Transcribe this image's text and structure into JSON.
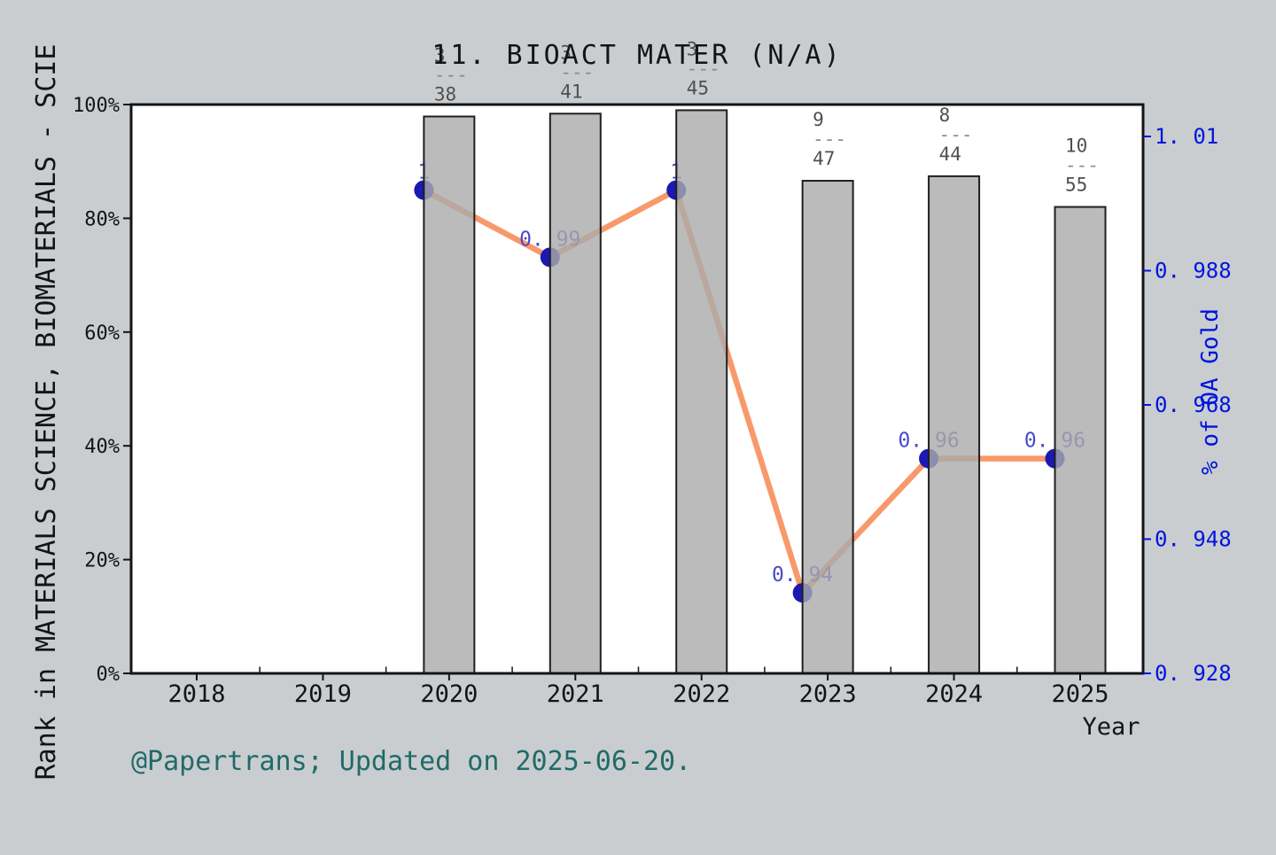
{
  "title": "11. BIOACT MATER (N/A)",
  "footer": "@Papertrans; Updated on 2025-06-20.",
  "axes": {
    "x": {
      "label": "Year",
      "tick_years": [
        2018,
        2019,
        2020,
        2021,
        2022,
        2023,
        2024,
        2025
      ],
      "tick_labels": [
        "2018",
        "2019",
        "2020",
        "2021",
        "2022",
        "2023",
        "2024",
        "2025"
      ]
    },
    "left": {
      "label": "Rank in MATERIALS SCIENCE, BIOMATERIALS - SCIE",
      "tick_values": [
        0,
        20,
        40,
        60,
        80,
        100
      ],
      "tick_labels": [
        "0%",
        "20%",
        "40%",
        "60%",
        "80%",
        "100%"
      ]
    },
    "right": {
      "label": "% of OA Gold",
      "tick_values": [
        0.928,
        0.948,
        0.968,
        0.988,
        1.008
      ],
      "tick_labels": [
        "0. 928",
        "0. 948",
        "0. 968",
        "0. 988",
        "1. 01"
      ]
    }
  },
  "fraction_separator": "---",
  "colors": {
    "background": "#c9cdd0",
    "plot_background": "#ffffff",
    "bar_fill": "#aaaaaa",
    "bar_edge": "#1f1f1f",
    "line": "#f8996b",
    "marker": "#1a1ab2",
    "point_label": "#4a4ac8",
    "right_axis": "#0014dc",
    "left_axis_text": "#141414",
    "fraction_text": "#4f4f4f",
    "fraction_dash": "#8c8c8c",
    "footer_text": "#206a69"
  },
  "chart_data": [
    {
      "type": "bar",
      "title": "11. BIOACT MATER (N/A)",
      "categories": [
        2020,
        2021,
        2022,
        2023,
        2024,
        2025
      ],
      "values_percent": [
        97.9,
        98.4,
        99.0,
        86.6,
        87.4,
        82.0
      ],
      "bar_labels": [
        "3/38",
        "3/41",
        "3/45",
        "9/47",
        "8/44",
        "10/55"
      ],
      "fractions": [
        {
          "num": "3",
          "den": "38"
        },
        {
          "num": "3",
          "den": "41"
        },
        {
          "num": "3",
          "den": "45"
        },
        {
          "num": "9",
          "den": "47"
        },
        {
          "num": "8",
          "den": "44"
        },
        {
          "num": "10",
          "den": "55"
        }
      ],
      "axis": "left",
      "ylabel": "Rank in MATERIALS SCIENCE, BIOMATERIALS - SCIE",
      "ylim_percent": [
        0,
        100
      ],
      "yticks": [
        "0%",
        "20%",
        "40%",
        "60%",
        "80%",
        "100%"
      ],
      "xlabel": "Year",
      "xticks": [
        "2018",
        "2019",
        "2020",
        "2021",
        "2022",
        "2023",
        "2024",
        "2025"
      ],
      "grid": false,
      "legend": false
    },
    {
      "type": "line",
      "x": [
        2020,
        2021,
        2022,
        2023,
        2024,
        2025
      ],
      "values": [
        1.0,
        0.99,
        1.0,
        0.94,
        0.96,
        0.96
      ],
      "point_labels": [
        "1",
        "0. 99",
        "1",
        "0. 94",
        "0. 96",
        "0. 96"
      ],
      "axis": "right",
      "ylabel": "% of OA Gold",
      "ylim": [
        0.928,
        1.01
      ],
      "ytick_values": [
        0.928,
        0.948,
        0.968,
        0.988,
        1.008
      ],
      "ytick_labels": [
        "0. 928",
        "0. 948",
        "0. 968",
        "0. 988",
        "1. 01"
      ]
    }
  ]
}
